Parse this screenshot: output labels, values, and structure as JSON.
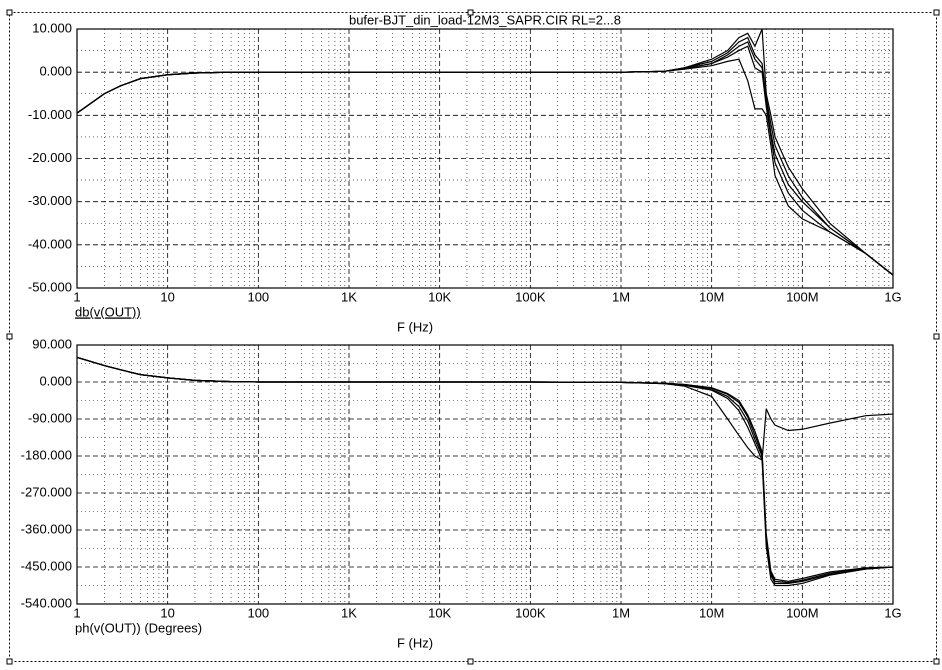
{
  "chart_data": [
    {
      "type": "line",
      "title": "bufer-BJT_din_load-12M3_SAPR.CIR RL=2...8",
      "y_label": "db(v(OUT))",
      "x_label": "F (Hz)",
      "log_x": true,
      "grid": true,
      "minor_grid": true,
      "x": [
        1,
        2,
        3,
        5,
        10,
        20,
        50,
        100,
        1000,
        10000,
        100000,
        1000000,
        3000000,
        5000000,
        10000000,
        15000000,
        20000000,
        25000000,
        30000000,
        36000000,
        40000000,
        45000000,
        50000000,
        70000000,
        100000000,
        200000000,
        500000000,
        1000000000
      ],
      "xlim": [
        1,
        1000000000
      ],
      "xticks": [
        1,
        10,
        100,
        {
          "value": 1000,
          "label": "1K"
        },
        {
          "value": 10000,
          "label": "10K"
        },
        {
          "value": 100000,
          "label": "100K"
        },
        {
          "value": 1000000,
          "label": "1M"
        },
        {
          "value": 10000000,
          "label": "10M"
        },
        {
          "value": 100000000,
          "label": "100M"
        },
        {
          "value": 1000000000,
          "label": "1G"
        }
      ],
      "ylim": [
        -50,
        10
      ],
      "yticks": [
        {
          "value": 10,
          "label": "10.000"
        },
        {
          "value": 0,
          "label": "0.000"
        },
        {
          "value": -10,
          "label": "-10.000"
        },
        {
          "value": -20,
          "label": "-20.000"
        },
        {
          "value": -30,
          "label": "-30.000"
        },
        {
          "value": -40,
          "label": "-40.000"
        },
        {
          "value": -50,
          "label": "-50.000"
        }
      ],
      "series": [
        {
          "color": "#000000",
          "values": [
            -9.5,
            -5,
            -3.2,
            -1.5,
            -0.6,
            -0.2,
            0,
            0,
            0,
            0,
            0,
            0,
            0.2,
            1,
            3,
            5,
            8,
            9,
            6,
            10,
            -5,
            -10,
            -15,
            -22,
            -27,
            -35,
            -42,
            -47
          ]
        },
        {
          "color": "#000000",
          "values": [
            -9.5,
            -5,
            -3.2,
            -1.5,
            -0.6,
            -0.2,
            0,
            0,
            0,
            0,
            0,
            0,
            0.2,
            1,
            2.5,
            4.5,
            7,
            8,
            4,
            2,
            -6,
            -12,
            -17,
            -24,
            -29,
            -36,
            -42,
            -47
          ]
        },
        {
          "color": "#000000",
          "values": [
            -9.5,
            -5,
            -3.2,
            -1.5,
            -0.6,
            -0.2,
            0,
            0,
            0,
            0,
            0,
            0,
            0.2,
            0.8,
            2,
            4,
            6,
            7,
            3,
            1,
            -7,
            -14,
            -19,
            -26,
            -30,
            -36,
            -42,
            -47
          ]
        },
        {
          "color": "#000000",
          "values": [
            -9.5,
            -5,
            -3.2,
            -1.5,
            -0.6,
            -0.2,
            0,
            0,
            0,
            0,
            0,
            0,
            0.2,
            0.8,
            2,
            3.5,
            5,
            6,
            1,
            0,
            -8,
            -15,
            -21,
            -28,
            -32,
            -37,
            -42,
            -47
          ]
        },
        {
          "color": "#000000",
          "values": [
            -9.5,
            -5,
            -3.2,
            -1.5,
            -0.6,
            -0.2,
            0,
            0,
            0,
            0,
            0,
            0,
            0.2,
            0.7,
            1.5,
            2.5,
            3,
            -2,
            -8.5,
            -8.5,
            -10,
            -17,
            -24,
            -31,
            -34,
            -37,
            -42,
            -47
          ]
        }
      ]
    },
    {
      "type": "line",
      "y_label": "ph(v(OUT)) (Degrees)",
      "x_label": "F (Hz)",
      "log_x": true,
      "grid": true,
      "minor_grid": true,
      "x": [
        1,
        2,
        3,
        5,
        10,
        20,
        50,
        100,
        1000,
        10000,
        100000,
        1000000,
        3000000,
        5000000,
        10000000,
        15000000,
        20000000,
        25000000,
        30000000,
        36000000,
        40000000,
        45000000,
        50000000,
        70000000,
        100000000,
        200000000,
        500000000,
        1000000000
      ],
      "xlim": [
        1,
        1000000000
      ],
      "xticks": [
        1,
        10,
        100,
        {
          "value": 1000,
          "label": "1K"
        },
        {
          "value": 10000,
          "label": "10K"
        },
        {
          "value": 100000,
          "label": "100K"
        },
        {
          "value": 1000000,
          "label": "1M"
        },
        {
          "value": 10000000,
          "label": "10M"
        },
        {
          "value": 100000000,
          "label": "100M"
        },
        {
          "value": 1000000000,
          "label": "1G"
        }
      ],
      "ylim": [
        -540,
        90
      ],
      "yticks": [
        {
          "value": 90,
          "label": "90.000"
        },
        {
          "value": 0,
          "label": "0.000"
        },
        {
          "value": -90,
          "label": "-90.000"
        },
        {
          "value": -180,
          "label": "-180.000"
        },
        {
          "value": -270,
          "label": "-270.000"
        },
        {
          "value": -360,
          "label": "-360.000"
        },
        {
          "value": -450,
          "label": "-450.000"
        },
        {
          "value": -540,
          "label": "-540.000"
        }
      ],
      "series": [
        {
          "color": "#000000",
          "values": [
            60,
            40,
            30,
            18,
            10,
            4,
            1,
            0,
            0,
            0,
            0,
            -1,
            -4,
            -10,
            -35,
            -90,
            -130,
            -160,
            -180,
            -190,
            -65,
            -90,
            -105,
            -118,
            -115,
            -100,
            -82,
            -78
          ]
        },
        {
          "color": "#000000",
          "values": [
            60,
            40,
            30,
            18,
            10,
            4,
            1,
            0,
            0,
            0,
            0,
            -1,
            -4,
            -8,
            -20,
            -40,
            -70,
            -110,
            -150,
            -190,
            -400,
            -480,
            -495,
            -495,
            -490,
            -470,
            -455,
            -450
          ]
        },
        {
          "color": "#000000",
          "values": [
            60,
            40,
            30,
            18,
            10,
            4,
            1,
            0,
            0,
            0,
            0,
            -1,
            -3,
            -7,
            -18,
            -35,
            -60,
            -95,
            -140,
            -180,
            -390,
            -470,
            -490,
            -490,
            -485,
            -468,
            -455,
            -450
          ]
        },
        {
          "color": "#000000",
          "values": [
            60,
            40,
            30,
            18,
            10,
            4,
            1,
            0,
            0,
            0,
            0,
            -1,
            -3,
            -6,
            -15,
            -30,
            -50,
            -85,
            -130,
            -175,
            -380,
            -465,
            -485,
            -488,
            -482,
            -465,
            -453,
            -450
          ]
        },
        {
          "color": "#000000",
          "values": [
            60,
            40,
            30,
            18,
            10,
            4,
            1,
            0,
            0,
            0,
            0,
            -1,
            -3,
            -6,
            -14,
            -28,
            -45,
            -80,
            -120,
            -170,
            -370,
            -460,
            -480,
            -485,
            -478,
            -462,
            -452,
            -450
          ]
        }
      ]
    }
  ]
}
